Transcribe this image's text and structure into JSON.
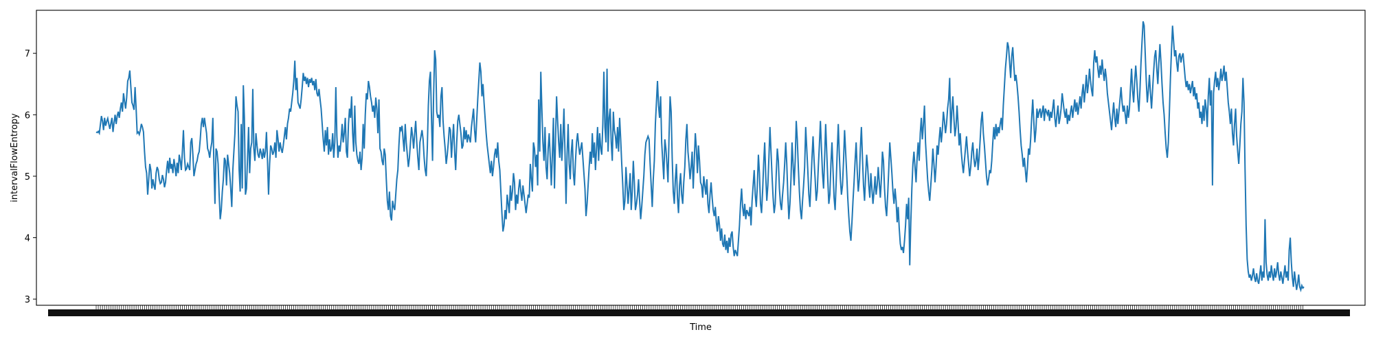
{
  "chart_data": {
    "type": "line",
    "title": "",
    "xlabel": "Time",
    "ylabel": "intervalFlowEntropy",
    "ylim": [
      2.9,
      7.7
    ],
    "yticks": [
      3,
      4,
      5,
      6,
      7
    ],
    "grid": false,
    "legend": "none",
    "line_color": "#1f77b4",
    "x_tick_labels_note": "",
    "series": [
      {
        "values": [
          5.72,
          5.71,
          5.73,
          5.7,
          5.84,
          5.98,
          5.9,
          5.75,
          5.95,
          5.82,
          5.89,
          5.94,
          5.85,
          5.77,
          5.86,
          5.95,
          5.72,
          5.87,
          6.0,
          5.85,
          5.98,
          6.05,
          5.95,
          6.1,
          6.2,
          6.05,
          6.35,
          6.22,
          6.1,
          6.28,
          6.55,
          6.6,
          6.72,
          6.45,
          6.2,
          6.15,
          6.08,
          6.45,
          6.1,
          5.7,
          5.72,
          5.68,
          5.75,
          5.85,
          5.8,
          5.72,
          5.4,
          5.15,
          5.05,
          4.7,
          4.95,
          5.2,
          5.1,
          4.8,
          4.95,
          4.85,
          4.78,
          5.05,
          5.15,
          5.1,
          4.95,
          4.88,
          4.9,
          5.02,
          4.95,
          4.82,
          4.9,
          5.1,
          5.25,
          5.05,
          5.3,
          5.12,
          5.2,
          5.05,
          5.28,
          5.15,
          5.0,
          5.22,
          5.05,
          5.35,
          5.25,
          5.1,
          5.4,
          5.75,
          5.3,
          5.1,
          5.12,
          5.2,
          5.15,
          5.1,
          5.55,
          5.62,
          5.35,
          5.0,
          5.1,
          5.2,
          5.25,
          5.35,
          5.4,
          5.6,
          5.85,
          5.95,
          5.8,
          5.95,
          5.82,
          5.7,
          5.45,
          5.4,
          5.3,
          5.45,
          5.55,
          5.95,
          5.2,
          4.55,
          5.45,
          5.4,
          5.2,
          4.7,
          4.3,
          4.45,
          4.75,
          4.95,
          5.3,
          5.25,
          4.85,
          5.35,
          5.2,
          5.05,
          4.8,
          4.5,
          5.1,
          5.4,
          5.7,
          6.3,
          6.15,
          6.05,
          5.1,
          4.75,
          5.85,
          4.8,
          6.48,
          5.95,
          4.7,
          4.8,
          5.3,
          5.8,
          5.05,
          5.45,
          5.55,
          6.42,
          5.45,
          5.25,
          5.7,
          5.5,
          5.35,
          5.3,
          5.45,
          5.38,
          5.28,
          5.45,
          5.3,
          5.4,
          5.72,
          5.25,
          4.7,
          5.2,
          5.5,
          5.45,
          5.35,
          5.4,
          5.55,
          5.3,
          5.75,
          5.6,
          5.4,
          5.55,
          5.45,
          5.38,
          5.5,
          5.65,
          5.8,
          5.6,
          5.85,
          5.95,
          6.1,
          6.05,
          6.2,
          6.35,
          6.55,
          6.88,
          6.4,
          6.6,
          6.2,
          6.15,
          6.1,
          6.25,
          6.45,
          6.68,
          6.55,
          6.62,
          6.5,
          6.6,
          6.45,
          6.58,
          6.52,
          6.6,
          6.48,
          6.55,
          6.4,
          6.58,
          6.35,
          6.3,
          6.42,
          6.25,
          6.1,
          5.85,
          5.6,
          5.4,
          5.75,
          5.5,
          5.8,
          5.35,
          5.6,
          5.4,
          5.45,
          5.7,
          5.3,
          5.55,
          6.45,
          5.65,
          5.3,
          5.5,
          5.4,
          5.6,
          5.85,
          5.55,
          5.7,
          5.95,
          5.4,
          5.3,
          5.85,
          6.1,
          5.95,
          6.3,
          5.7,
          5.4,
          6.15,
          5.55,
          5.35,
          5.25,
          5.2,
          5.4,
          5.1,
          5.3,
          5.85,
          5.45,
          6.0,
          6.35,
          6.25,
          6.55,
          6.45,
          6.3,
          6.2,
          6.05,
          6.15,
          5.95,
          6.28,
          6.1,
          5.7,
          6.25,
          5.45,
          5.4,
          5.25,
          5.18,
          5.45,
          5.35,
          4.95,
          4.6,
          4.45,
          4.75,
          4.35,
          4.28,
          4.6,
          4.5,
          4.45,
          4.7,
          4.95,
          5.1,
          5.5,
          5.8,
          5.75,
          5.82,
          5.6,
          5.4,
          5.85,
          5.55,
          5.35,
          5.15,
          5.3,
          5.55,
          5.8,
          5.65,
          5.45,
          5.7,
          5.9,
          5.55,
          5.3,
          5.1,
          5.55,
          5.65,
          5.75,
          5.6,
          5.3,
          5.1,
          5.0,
          5.45,
          6.15,
          6.55,
          6.7,
          5.95,
          5.25,
          6.3,
          7.05,
          6.9,
          6.05,
          5.95,
          6.0,
          5.8,
          6.3,
          6.45,
          5.9,
          5.65,
          5.45,
          5.2,
          5.35,
          5.55,
          5.8,
          5.75,
          5.3,
          5.6,
          5.85,
          5.4,
          5.1,
          5.55,
          5.9,
          6.0,
          5.85,
          5.7,
          5.45,
          5.5,
          5.8,
          5.6,
          5.75,
          5.55,
          5.68,
          5.62,
          5.55,
          5.8,
          5.95,
          6.1,
          5.75,
          5.55,
          5.9,
          6.25,
          6.55,
          6.85,
          6.7,
          6.3,
          6.5,
          6.2,
          5.95,
          5.7,
          5.5,
          5.35,
          5.2,
          5.05,
          5.25,
          5.0,
          5.15,
          5.35,
          5.45,
          5.3,
          5.55,
          5.25,
          5.1,
          4.75,
          4.4,
          4.1,
          4.2,
          4.45,
          4.3,
          4.7,
          4.55,
          4.4,
          4.85,
          4.6,
          4.75,
          5.05,
          4.9,
          4.45,
          4.7,
          4.55,
          4.8,
          4.95,
          4.75,
          4.6,
          4.85,
          4.7,
          4.55,
          4.4,
          4.55,
          4.7,
          4.65,
          5.2,
          4.95,
          4.75,
          5.55,
          5.45,
          5.15,
          5.35,
          4.85,
          6.25,
          5.4,
          6.7,
          6.1,
          5.55,
          5.25,
          5.8,
          5.15,
          4.95,
          5.45,
          5.7,
          5.3,
          4.85,
          5.35,
          5.95,
          4.8,
          5.6,
          6.3,
          5.9,
          5.55,
          5.3,
          5.85,
          5.25,
          5.6,
          6.1,
          5.4,
          4.55,
          5.35,
          5.85,
          5.2,
          4.95,
          5.4,
          5.6,
          5.05,
          4.85,
          5.25,
          5.55,
          5.7,
          5.5,
          5.35,
          5.45,
          5.55,
          5.3,
          5.05,
          4.8,
          4.35,
          4.55,
          4.85,
          5.15,
          5.4,
          5.2,
          5.7,
          5.3,
          5.55,
          5.1,
          5.45,
          5.8,
          5.25,
          5.7,
          5.45,
          5.35,
          5.85,
          6.7,
          5.8,
          5.55,
          6.75,
          5.4,
          5.95,
          6.1,
          5.55,
          5.25,
          6.05,
          5.75,
          5.65,
          5.45,
          5.8,
          5.4,
          5.95,
          5.6,
          5.2,
          4.85,
          4.45,
          4.6,
          5.15,
          4.85,
          4.55,
          4.8,
          5.05,
          4.45,
          4.75,
          5.25,
          4.9,
          4.45,
          4.55,
          4.7,
          4.95,
          4.6,
          4.3,
          4.5,
          4.75,
          5.0,
          5.35,
          5.55,
          5.6,
          5.65,
          5.6,
          5.2,
          4.85,
          4.5,
          4.95,
          5.25,
          5.85,
          6.2,
          6.55,
          6.15,
          5.95,
          6.3,
          5.55,
          5.25,
          4.95,
          5.6,
          5.45,
          5.2,
          4.9,
          5.65,
          6.3,
          6.05,
          5.3,
          4.75,
          4.55,
          4.95,
          5.2,
          4.65,
          4.4,
          4.85,
          5.05,
          4.7,
          4.55,
          4.9,
          5.15,
          5.6,
          5.85,
          5.4,
          5.2,
          4.95,
          5.15,
          5.4,
          4.8,
          5.25,
          5.7,
          5.45,
          5.05,
          5.5,
          5.25,
          4.9,
          4.85,
          4.65,
          5.0,
          4.85,
          4.7,
          4.95,
          4.55,
          4.4,
          4.7,
          4.9,
          4.65,
          4.45,
          4.35,
          4.5,
          4.25,
          4.1,
          4.35,
          4.2,
          3.95,
          4.15,
          3.9,
          3.85,
          4.05,
          3.8,
          3.95,
          3.75,
          4.0,
          3.85,
          4.05,
          4.1,
          3.85,
          3.7,
          3.8,
          3.75,
          3.7,
          3.95,
          4.2,
          4.55,
          4.8,
          4.5,
          4.35,
          4.55,
          4.3,
          4.45,
          4.4,
          4.35,
          4.5,
          4.2,
          4.6,
          4.85,
          5.1,
          4.7,
          4.5,
          4.85,
          5.35,
          5.05,
          4.55,
          4.4,
          4.75,
          5.2,
          5.55,
          5.0,
          4.6,
          4.85,
          5.3,
          5.8,
          5.4,
          5.0,
          4.65,
          4.4,
          4.55,
          5.05,
          5.45,
          5.25,
          4.8,
          4.55,
          4.45,
          4.7,
          4.9,
          5.2,
          5.55,
          5.2,
          4.7,
          4.3,
          4.55,
          4.95,
          5.55,
          5.2,
          4.85,
          5.25,
          5.9,
          5.6,
          5.15,
          4.75,
          4.45,
          4.3,
          4.6,
          4.85,
          5.15,
          5.8,
          5.45,
          5.1,
          4.7,
          4.5,
          4.9,
          5.3,
          5.65,
          5.25,
          4.95,
          4.6,
          4.75,
          5.15,
          5.5,
          5.9,
          5.45,
          5.05,
          4.8,
          5.3,
          5.85,
          5.4,
          4.95,
          4.55,
          4.7,
          5.2,
          5.55,
          5.1,
          4.65,
          4.45,
          4.9,
          5.4,
          5.85,
          5.35,
          4.95,
          4.7,
          4.85,
          5.25,
          5.75,
          5.4,
          5.05,
          4.65,
          4.35,
          4.1,
          3.95,
          4.25,
          4.6,
          4.9,
          5.25,
          5.55,
          5.1,
          4.75,
          4.95,
          5.45,
          5.8,
          5.3,
          4.85,
          4.6,
          5.0,
          5.35,
          5.15,
          4.85,
          4.65,
          5.05,
          4.8,
          4.55,
          4.75,
          5.0,
          4.7,
          4.85,
          5.15,
          4.9,
          4.65,
          4.95,
          5.4,
          5.25,
          4.8,
          4.5,
          4.35,
          4.7,
          5.1,
          5.55,
          5.3,
          5.05,
          4.75,
          4.55,
          4.8,
          4.6,
          4.25,
          4.5,
          4.15,
          3.9,
          3.8,
          3.85,
          3.75,
          3.95,
          4.2,
          4.55,
          4.3,
          4.65,
          3.55,
          4.25,
          4.8,
          5.2,
          5.4,
          5.15,
          4.9,
          5.3,
          5.55,
          5.25,
          5.7,
          5.95,
          5.6,
          5.85,
          6.15,
          5.55,
          5.25,
          4.95,
          4.75,
          4.6,
          4.85,
          5.1,
          5.45,
          5.2,
          4.9,
          5.15,
          5.5,
          5.35,
          5.6,
          5.8,
          5.55,
          5.75,
          6.05,
          5.9,
          5.7,
          5.85,
          6.1,
          6.25,
          6.6,
          5.7,
          6.05,
          6.3,
          5.95,
          5.65,
          5.8,
          6.15,
          5.85,
          5.5,
          5.7,
          5.4,
          5.2,
          5.05,
          5.25,
          5.45,
          5.65,
          5.4,
          5.2,
          5.0,
          5.15,
          5.4,
          5.55,
          5.3,
          5.15,
          5.25,
          5.45,
          5.1,
          5.3,
          5.6,
          5.9,
          6.05,
          5.7,
          5.5,
          5.25,
          5.0,
          4.85,
          4.95,
          5.1,
          5.05,
          5.25,
          5.55,
          5.8,
          5.6,
          5.85,
          5.65,
          5.8,
          5.7,
          5.85,
          5.95,
          5.75,
          6.15,
          6.45,
          6.75,
          6.95,
          7.18,
          7.1,
          6.85,
          6.6,
          6.95,
          7.1,
          6.8,
          6.55,
          6.65,
          6.5,
          6.3,
          6.05,
          5.75,
          5.5,
          5.35,
          5.15,
          5.3,
          5.1,
          4.9,
          5.15,
          5.45,
          5.35,
          5.6,
          5.95,
          6.25,
          5.9,
          5.55,
          5.75,
          6.1,
          5.95,
          6.05,
          6.1,
          5.95,
          6.05,
          6.15,
          5.9,
          6.1,
          6.05,
          6.0,
          6.08,
          5.9,
          6.05,
          5.95,
          6.1,
          6.25,
          5.95,
          5.8,
          6.0,
          6.15,
          5.85,
          5.95,
          6.1,
          6.35,
          6.2,
          6.05,
          5.95,
          6.1,
          5.85,
          6.0,
          5.9,
          6.05,
          6.15,
          5.95,
          6.1,
          6.25,
          6.05,
          6.2,
          6.0,
          6.15,
          6.3,
          6.1,
          6.35,
          6.5,
          6.2,
          6.4,
          6.65,
          6.35,
          6.5,
          6.75,
          6.55,
          6.4,
          6.3,
          6.85,
          7.05,
          6.85,
          6.95,
          6.75,
          6.6,
          6.8,
          6.65,
          6.9,
          6.7,
          6.55,
          6.75,
          6.6,
          6.35,
          6.2,
          6.05,
          5.9,
          5.75,
          6.0,
          6.2,
          5.95,
          5.8,
          6.1,
          5.85,
          6.05,
          6.25,
          6.45,
          6.2,
          6.05,
          6.15,
          6.0,
          5.85,
          6.15,
          5.95,
          6.1,
          6.45,
          6.75,
          6.4,
          6.2,
          6.55,
          6.8,
          6.55,
          6.25,
          6.05,
          6.4,
          6.85,
          7.2,
          7.52,
          7.45,
          7.0,
          6.55,
          6.2,
          6.4,
          6.65,
          6.35,
          6.1,
          6.4,
          6.7,
          6.95,
          7.05,
          6.75,
          6.5,
          6.85,
          7.15,
          6.85,
          6.5,
          6.2,
          6.0,
          5.7,
          5.45,
          5.3,
          5.55,
          6.05,
          6.6,
          7.05,
          7.45,
          7.2,
          6.95,
          7.05,
          6.85,
          6.7,
          6.95,
          7.0,
          6.85,
          6.95,
          7.0,
          6.8,
          6.6,
          6.45,
          6.55,
          6.4,
          6.5,
          6.35,
          6.45,
          6.55,
          6.3,
          6.45,
          6.25,
          6.35,
          6.1,
          6.2,
          5.95,
          6.05,
          5.85,
          6.15,
          5.9,
          6.25,
          6.1,
          5.8,
          6.3,
          6.6,
          6.15,
          6.4,
          4.85,
          6.35,
          6.55,
          6.7,
          6.45,
          6.6,
          6.4,
          6.55,
          6.75,
          6.55,
          6.65,
          6.8,
          6.55,
          6.7,
          6.45,
          6.2,
          6.05,
          5.85,
          6.1,
          5.7,
          5.5,
          5.85,
          6.1,
          5.65,
          5.4,
          5.2,
          5.5,
          5.85,
          6.05,
          6.6,
          6.2,
          5.1,
          4.2,
          3.65,
          3.45,
          3.35,
          3.4,
          3.3,
          3.38,
          3.5,
          3.35,
          3.28,
          3.42,
          3.3,
          3.25,
          3.4,
          3.55,
          3.3,
          3.45,
          3.35,
          4.3,
          3.6,
          3.4,
          3.3,
          3.45,
          3.35,
          3.55,
          3.4,
          3.3,
          3.5,
          3.35,
          3.45,
          3.6,
          3.4,
          3.3,
          3.45,
          3.35,
          3.25,
          3.4,
          3.55,
          3.35,
          3.45,
          3.3,
          3.8,
          4.0,
          3.6,
          3.35,
          3.2,
          3.45,
          3.3,
          3.15,
          3.25,
          3.4,
          3.2,
          3.15,
          3.22,
          3.18,
          3.2
        ]
      }
    ]
  }
}
